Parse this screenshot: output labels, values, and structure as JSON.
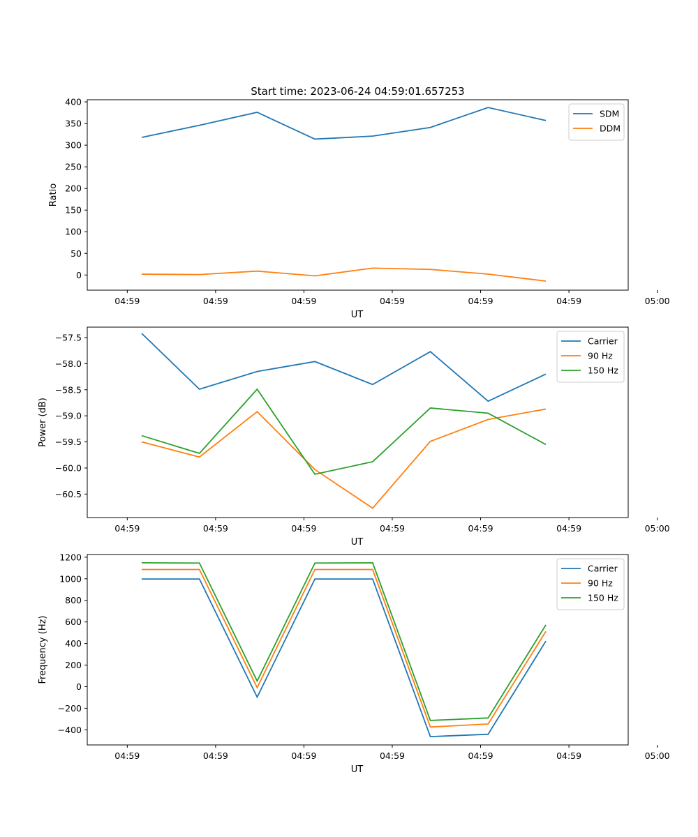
{
  "figure": {
    "title": "Start time: 2023-06-24 04:59:01.657253"
  },
  "chart_data": [
    {
      "type": "line",
      "xlabel": "UT",
      "ylabel": "Ratio",
      "x_tick_labels": [
        "04:59",
        "04:59",
        "04:59",
        "04:59",
        "04:59",
        "04:59",
        "05:00"
      ],
      "ylim": [
        -35,
        405
      ],
      "y_ticks": [
        0,
        50,
        100,
        150,
        200,
        250,
        300,
        350,
        400
      ],
      "legend": "top-right",
      "series": [
        {
          "name": "SDM",
          "color": "#1f77b4",
          "values": [
            318,
            346,
            376,
            314,
            321,
            341,
            387,
            357
          ]
        },
        {
          "name": "DDM",
          "color": "#ff7f0e",
          "values": [
            2,
            1,
            9,
            -2,
            16,
            13,
            2,
            -14
          ]
        }
      ]
    },
    {
      "type": "line",
      "xlabel": "UT",
      "ylabel": "Power (dB)",
      "x_tick_labels": [
        "04:59",
        "04:59",
        "04:59",
        "04:59",
        "04:59",
        "04:59",
        "05:00"
      ],
      "ylim": [
        -60.95,
        -57.3
      ],
      "y_ticks": [
        -60.5,
        -60.0,
        -59.5,
        -59.0,
        -58.5,
        -58.0,
        -57.5
      ],
      "y_tick_format": "fixed1",
      "legend": "top-right",
      "series": [
        {
          "name": "Carrier",
          "color": "#1f77b4",
          "values": [
            -57.42,
            -58.49,
            -58.15,
            -57.96,
            -58.4,
            -57.77,
            -58.72,
            -58.2
          ]
        },
        {
          "name": "90 Hz",
          "color": "#ff7f0e",
          "values": [
            -59.5,
            -59.79,
            -58.92,
            -60.03,
            -60.77,
            -59.49,
            -59.07,
            -58.87
          ]
        },
        {
          "name": "150 Hz",
          "color": "#2ca02c",
          "values": [
            -59.38,
            -59.72,
            -58.49,
            -60.12,
            -59.88,
            -58.85,
            -58.95,
            -59.55
          ]
        }
      ]
    },
    {
      "type": "line",
      "xlabel": "UT",
      "ylabel": "Frequency (Hz)",
      "x_tick_labels": [
        "04:59",
        "04:59",
        "04:59",
        "04:59",
        "04:59",
        "04:59",
        "05:00"
      ],
      "ylim": [
        -540,
        1225
      ],
      "y_ticks": [
        -400,
        -200,
        0,
        200,
        400,
        600,
        800,
        1000,
        1200
      ],
      "legend": "top-right",
      "series": [
        {
          "name": "Carrier",
          "color": "#1f77b4",
          "values": [
            998,
            998,
            -97,
            998,
            998,
            -463,
            -441,
            422
          ]
        },
        {
          "name": "90 Hz",
          "color": "#ff7f0e",
          "values": [
            1086,
            1086,
            -9,
            1086,
            1086,
            -374,
            -346,
            512
          ]
        },
        {
          "name": "150 Hz",
          "color": "#2ca02c",
          "values": [
            1148,
            1146,
            52,
            1146,
            1148,
            -313,
            -290,
            572
          ]
        }
      ]
    }
  ]
}
